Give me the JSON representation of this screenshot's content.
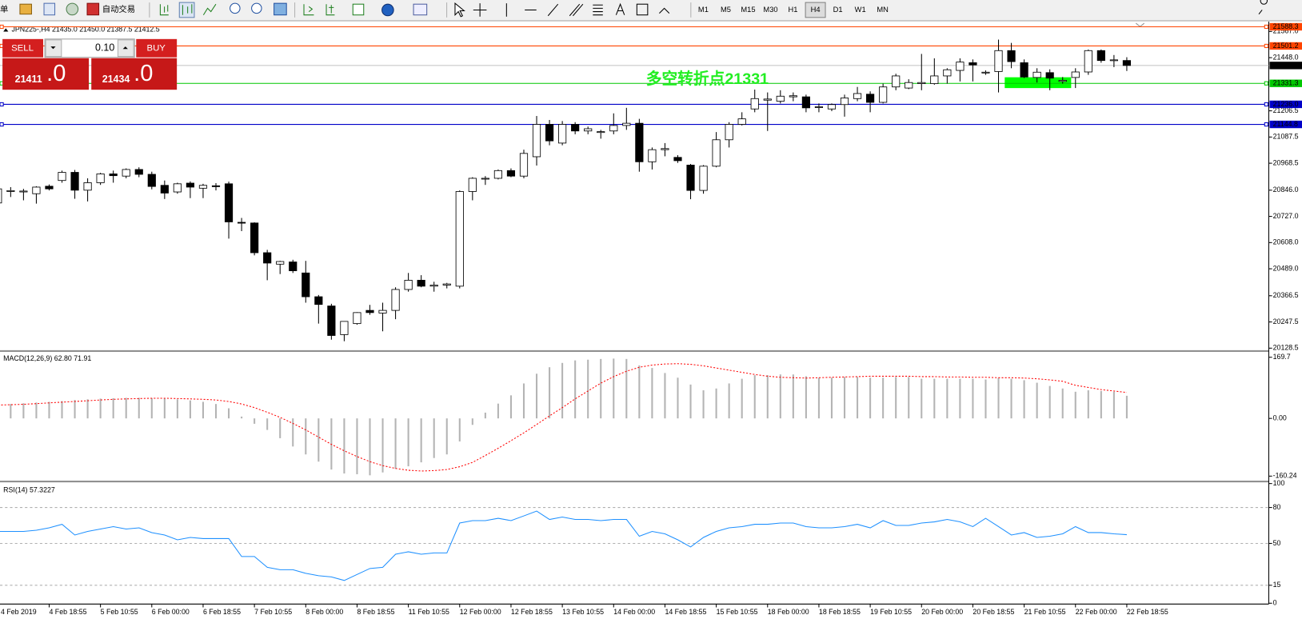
{
  "toolbar": {
    "menu_fragment": "单",
    "autotrade": "自动交易",
    "timeframes": [
      "M1",
      "M5",
      "M15",
      "M30",
      "H1",
      "H4",
      "D1",
      "W1",
      "MN"
    ],
    "active_timeframe": "H4"
  },
  "trade_panel": {
    "sell": "SELL",
    "buy": "BUY",
    "lot": "0.10",
    "sell_price_main": "21411",
    "sell_price_frac": ".0",
    "buy_price_main": "21434",
    "buy_price_frac": ".0"
  },
  "chart_data": [
    {
      "type": "candlestick",
      "title": "JPN225-,H4  21435.0 21450.0 21387.5 21412.5",
      "categories": [
        "4 Feb 2019",
        null,
        null,
        null,
        "4 Feb 18:55",
        null,
        null,
        null,
        "5 Feb 10:55",
        null,
        null,
        null,
        "6 Feb 00:00",
        null,
        null,
        null,
        "6 Feb 18:55",
        null,
        null,
        null,
        "7 Feb 10:55",
        null,
        null,
        null,
        "8 Feb 00:00",
        null,
        null,
        null,
        "8 Feb 18:55",
        null,
        null,
        null,
        "11 Feb 10:55",
        null,
        null,
        null,
        "12 Feb 00:00",
        null,
        null,
        null,
        "12 Feb 18:55",
        null,
        null,
        null,
        "13 Feb 10:55",
        null,
        null,
        null,
        "14 Feb 00:00",
        null,
        null,
        null,
        "14 Feb 18:55",
        null,
        null,
        null,
        "15 Feb 10:55",
        null,
        null,
        null,
        "18 Feb 00:00",
        null,
        null,
        null,
        "18 Feb 18:55",
        null,
        null,
        null,
        "19 Feb 10:55",
        null,
        null,
        null,
        "20 Feb 00:00",
        null,
        null,
        null,
        "20 Feb 18:55",
        null,
        null,
        null,
        "21 Feb 10:55",
        null,
        null,
        null,
        "22 Feb 00:00",
        null,
        null,
        null,
        "22 Feb 18:55"
      ],
      "open": [
        20788,
        20840,
        20838,
        20830,
        20864,
        20890,
        20927,
        20846,
        20880,
        20920,
        20910,
        20940,
        20918,
        20868,
        20838,
        20878,
        20855,
        20866,
        20875,
        20700,
        20697,
        20562,
        20510,
        20520,
        20470,
        20362,
        20320,
        20190,
        20240,
        20300,
        20288,
        20300,
        20395,
        20437,
        20410,
        20415,
        20410,
        20840,
        20898,
        20900,
        20935,
        20910,
        20998,
        21145,
        21060,
        21145,
        21115,
        21108,
        21115,
        21140,
        21150,
        20975,
        21030,
        20995,
        20960,
        20845,
        20955,
        21075,
        21145,
        21215,
        21255,
        21250,
        21270,
        21270,
        21222,
        21215,
        21235,
        21262,
        21282,
        21245,
        21315,
        21310,
        21330,
        21330,
        21365,
        21390,
        21425,
        21380,
        21385,
        21480,
        21425,
        21358,
        21380,
        21340,
        21358,
        21383,
        21480,
        21435,
        21435
      ],
      "high": [
        20890,
        20860,
        20852,
        20864,
        20872,
        20935,
        20938,
        20900,
        20925,
        20935,
        20945,
        20950,
        20930,
        20890,
        20880,
        20886,
        20875,
        20878,
        20885,
        20720,
        20700,
        20575,
        20525,
        20530,
        20525,
        20370,
        20330,
        20250,
        20292,
        20325,
        20335,
        20405,
        20470,
        20460,
        20430,
        20425,
        20845,
        20905,
        20910,
        20940,
        20945,
        21030,
        21183,
        21165,
        21160,
        21155,
        21135,
        21120,
        21195,
        21220,
        21170,
        21040,
        21060,
        21005,
        20965,
        20960,
        21110,
        21155,
        21200,
        21303,
        21290,
        21300,
        21290,
        21280,
        21240,
        21240,
        21280,
        21315,
        21295,
        21330,
        21375,
        21350,
        21465,
        21445,
        21400,
        21445,
        21440,
        21390,
        21530,
        21515,
        21440,
        21400,
        21395,
        21360,
        21400,
        21485,
        21485,
        21460,
        21450
      ],
      "low": [
        20777,
        20815,
        20800,
        20785,
        20845,
        20880,
        20807,
        20795,
        20870,
        20880,
        20900,
        20905,
        20850,
        20806,
        20830,
        20810,
        20810,
        20845,
        20626,
        20660,
        20550,
        20437,
        20465,
        20470,
        20335,
        20240,
        20167,
        20160,
        20235,
        20280,
        20205,
        20260,
        20385,
        20405,
        20385,
        20400,
        20400,
        20800,
        20870,
        20895,
        20905,
        20900,
        20958,
        21050,
        21050,
        21100,
        21100,
        21080,
        21100,
        21120,
        20930,
        20940,
        21000,
        20970,
        20805,
        20830,
        20950,
        21040,
        21140,
        21200,
        21115,
        21240,
        21250,
        21200,
        21200,
        21205,
        21180,
        21250,
        21200,
        21240,
        21300,
        21305,
        21300,
        21325,
        21330,
        21340,
        21340,
        21370,
        21290,
        21400,
        21355,
        21335,
        21300,
        21330,
        21310,
        21370,
        21425,
        21405,
        21387.5
      ],
      "close": [
        20852,
        20844,
        20842,
        20860,
        20852,
        20927,
        20846,
        20880,
        20920,
        20912,
        20940,
        20918,
        20863,
        20833,
        20875,
        20860,
        20868,
        20862,
        20702,
        20697,
        20562,
        20515,
        20522,
        20480,
        20362,
        20327,
        20186,
        20250,
        20290,
        20290,
        20300,
        20395,
        20437,
        20410,
        20415,
        20420,
        20840,
        20900,
        20900,
        20935,
        20910,
        21013,
        21145,
        21070,
        21145,
        21115,
        21125,
        21112,
        21140,
        21150,
        20975,
        21030,
        21035,
        20980,
        20845,
        20955,
        21075,
        21145,
        21170,
        21262,
        21260,
        21273,
        21275,
        21220,
        21225,
        21235,
        21265,
        21285,
        21245,
        21315,
        21365,
        21335,
        21335,
        21365,
        21393,
        21428,
        21415,
        21382,
        21480,
        21430,
        21360,
        21382,
        21355,
        21345,
        21383,
        21480,
        21435,
        21438,
        21412.5
      ],
      "ylim": [
        20121,
        21608
      ],
      "yticks": [
        {
          "value": 21567,
          "label": "21567.0"
        },
        {
          "value": 21448,
          "label": "21448.0"
        },
        21206.5,
        21087.5,
        20968.5,
        {
          "value": 20846,
          "label": "20846.0"
        },
        {
          "value": 20727,
          "label": "20727.0"
        },
        {
          "value": 20608,
          "label": "20608.0"
        },
        {
          "value": 20489,
          "label": "20489.0"
        },
        20366.5,
        20247.5,
        20128.5
      ],
      "levels": [
        {
          "value": 21588.3,
          "label": "21588.3",
          "color": "#ff4500"
        },
        {
          "value": 21501.2,
          "label": "21501.2",
          "color": "#ff4500"
        },
        {
          "value": 21331.3,
          "label": "21331.3",
          "color": "#00c800"
        },
        {
          "value": 21236,
          "label": "21236.0",
          "color": "#0000c8"
        },
        {
          "value": 21144.8,
          "label": "21144.8",
          "color": "#0000c8"
        }
      ],
      "last_price": {
        "value": 21412.5,
        "label": "21412.5"
      },
      "annotation": "多空转折点21331",
      "annotation_color": "#22ee22"
    },
    {
      "type": "combo",
      "title": "MACD(12,26,9) 62.80 71.91",
      "series": [
        {
          "type": "bar",
          "color": "#b4b4b4",
          "values": [
            38,
            40,
            42,
            44,
            46,
            48,
            51,
            53,
            55,
            56,
            57,
            57,
            56,
            55,
            53,
            50,
            46,
            40,
            28,
            5,
            -15,
            -32,
            -55,
            -78,
            -100,
            -120,
            -142,
            -153,
            -155,
            -158,
            -150,
            -140,
            -133,
            -122,
            -110,
            -100,
            -64,
            -18,
            16,
            41,
            64,
            97,
            124,
            142,
            154,
            161,
            163,
            165,
            166,
            165,
            147,
            140,
            126,
            113,
            94,
            78,
            83,
            97,
            110,
            120,
            120,
            122,
            122,
            117,
            113,
            113,
            115,
            115,
            113,
            113,
            115,
            115,
            110,
            110,
            110,
            110,
            110,
            108,
            112,
            110,
            106,
            99,
            90,
            83,
            74,
            78,
            76,
            74,
            62.8
          ]
        },
        {
          "type": "line",
          "color": "#ff0000",
          "values": [
            37,
            38,
            39,
            41,
            43,
            45,
            47,
            49,
            51,
            53,
            54,
            55,
            56,
            56,
            55,
            54,
            53,
            51,
            47,
            40,
            30,
            17,
            3,
            -14,
            -32,
            -52,
            -72,
            -90,
            -106,
            -120,
            -131,
            -139,
            -144,
            -146,
            -145,
            -142,
            -134,
            -122,
            -103,
            -83,
            -62,
            -40,
            -17,
            7,
            30,
            54,
            76,
            98,
            116,
            131,
            142,
            148,
            151,
            152,
            150,
            146,
            140,
            134,
            128,
            122,
            117,
            114,
            113,
            112,
            113,
            114,
            115,
            116,
            117,
            117,
            117,
            117,
            116,
            116,
            115,
            115,
            114,
            114,
            113,
            113,
            112,
            110,
            107,
            103,
            92,
            86,
            80,
            76,
            71.91
          ]
        }
      ],
      "ylim": [
        -171.7,
        183.5
      ],
      "yticks": [
        169.7,
        {
          "value": 0,
          "label": "0.00"
        },
        -160.24
      ]
    },
    {
      "type": "line",
      "title": "RSI(14) 57.3227",
      "color": "#1e90ff",
      "values": [
        60,
        60,
        60,
        61,
        63,
        66,
        57,
        60,
        62,
        64,
        62,
        63,
        59,
        57,
        53,
        55,
        54,
        54,
        54,
        39,
        39,
        30,
        28,
        28,
        25,
        23,
        22,
        19,
        24,
        29,
        30,
        41,
        43,
        41,
        42,
        42,
        67,
        69,
        69,
        71,
        69,
        73,
        77,
        70,
        72,
        70,
        70,
        69,
        70,
        70,
        56,
        60,
        58,
        53,
        47,
        55,
        60,
        63,
        64,
        66,
        66,
        67,
        67,
        64,
        63,
        63,
        64,
        66,
        63,
        69,
        65,
        65,
        67,
        68,
        70,
        68,
        64,
        71,
        64,
        57,
        59,
        55,
        56,
        58,
        64,
        59,
        59,
        58,
        57.3227
      ],
      "ylim": [
        0,
        100
      ],
      "yticks": [
        100,
        80,
        50,
        15,
        0
      ],
      "grid": true
    }
  ]
}
